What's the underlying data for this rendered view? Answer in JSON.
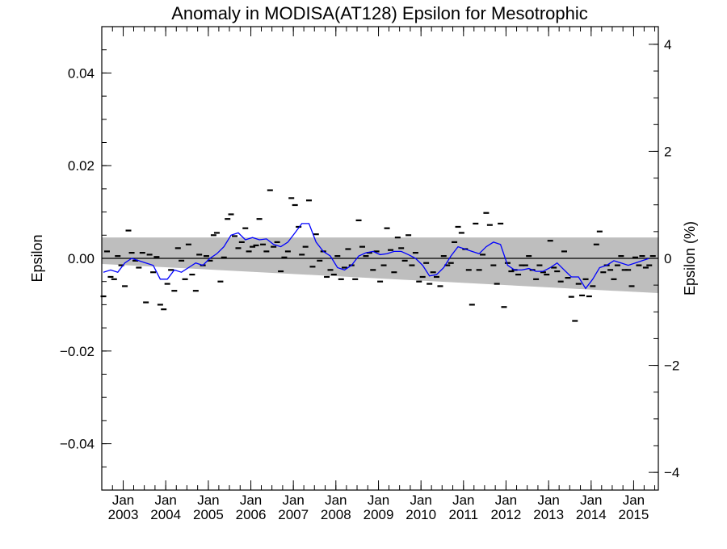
{
  "chart_data": {
    "type": "scatter",
    "title": "Anomaly in MODISA(AT128) Epsilon for Mesotrophic",
    "ylabel": "Epsilon",
    "ylabel_right": "Epsilon (%)",
    "xlabel": "",
    "ylim": [
      -0.05,
      0.05
    ],
    "ylim_right_percent": [
      -4.33,
      4.33
    ],
    "xlim": [
      "2002-07-01",
      "2015-08-01"
    ],
    "y_ticks": [
      "0.04",
      "0.02",
      "0.00",
      "−0.02",
      "−0.04"
    ],
    "y_tick_values": [
      0.04,
      0.02,
      0.0,
      -0.02,
      -0.04
    ],
    "y_right_ticks": [
      "4",
      "2",
      "0",
      "−2",
      "−4"
    ],
    "y_right_tick_values": [
      4,
      2,
      0,
      -2,
      -4
    ],
    "x_tick_labels": [
      {
        "month": "Jan",
        "year": "2003",
        "date": "2003-01-01"
      },
      {
        "month": "Jan",
        "year": "2004",
        "date": "2004-01-01"
      },
      {
        "month": "Jan",
        "year": "2005",
        "date": "2005-01-01"
      },
      {
        "month": "Jan",
        "year": "2006",
        "date": "2006-01-01"
      },
      {
        "month": "Jan",
        "year": "2007",
        "date": "2007-01-01"
      },
      {
        "month": "Jan",
        "year": "2008",
        "date": "2008-01-01"
      },
      {
        "month": "Jan",
        "year": "2009",
        "date": "2009-01-01"
      },
      {
        "month": "Jan",
        "year": "2010",
        "date": "2010-01-01"
      },
      {
        "month": "Jan",
        "year": "2011",
        "date": "2011-01-01"
      },
      {
        "month": "Jan",
        "year": "2012",
        "date": "2012-01-01"
      },
      {
        "month": "Jan",
        "year": "2013",
        "date": "2013-01-01"
      },
      {
        "month": "Jan",
        "year": "2014",
        "date": "2014-01-01"
      },
      {
        "month": "Jan",
        "year": "2015",
        "date": "2015-01-01"
      }
    ],
    "reference_line_y": 0.0,
    "band": {
      "color": "#bebebe",
      "start": {
        "date": "2002-07-01",
        "upper": 0.0045,
        "lower": -0.0012
      },
      "end": {
        "date": "2015-08-01",
        "upper": 0.0045,
        "lower": -0.0075
      }
    },
    "series": [
      {
        "style": "dash-markers",
        "color": "#000000",
        "points": [
          [
            "2002-07-15",
            -0.0082
          ],
          [
            "2002-08-15",
            0.0015
          ],
          [
            "2002-09-15",
            -0.004
          ],
          [
            "2002-10-15",
            -0.0045
          ],
          [
            "2002-11-15",
            0.0005
          ],
          [
            "2002-12-15",
            -0.0015
          ],
          [
            "2003-01-15",
            -0.006
          ],
          [
            "2003-02-15",
            0.006
          ],
          [
            "2003-03-15",
            0.0012
          ],
          [
            "2003-04-15",
            -0.0005
          ],
          [
            "2003-05-15",
            -0.002
          ],
          [
            "2003-06-15",
            0.0012
          ],
          [
            "2003-07-15",
            -0.0095
          ],
          [
            "2003-08-15",
            0.0008
          ],
          [
            "2003-09-15",
            -0.003
          ],
          [
            "2003-10-15",
            0.0003
          ],
          [
            "2003-11-15",
            -0.01
          ],
          [
            "2003-12-15",
            -0.011
          ],
          [
            "2004-01-15",
            -0.0055
          ],
          [
            "2004-02-15",
            -0.0025
          ],
          [
            "2004-03-15",
            -0.007
          ],
          [
            "2004-04-15",
            0.0022
          ],
          [
            "2004-05-15",
            -0.0005
          ],
          [
            "2004-06-15",
            -0.0045
          ],
          [
            "2004-07-15",
            0.003
          ],
          [
            "2004-08-15",
            -0.0035
          ],
          [
            "2004-09-15",
            -0.007
          ],
          [
            "2004-10-15",
            0.0008
          ],
          [
            "2004-11-15",
            -0.0015
          ],
          [
            "2004-12-15",
            0.0005
          ],
          [
            "2005-01-15",
            -0.0005
          ],
          [
            "2005-02-15",
            0.005
          ],
          [
            "2005-03-15",
            0.0055
          ],
          [
            "2005-04-15",
            -0.005
          ],
          [
            "2005-05-15",
            0.0002
          ],
          [
            "2005-06-15",
            0.0085
          ],
          [
            "2005-07-15",
            0.0095
          ],
          [
            "2005-08-15",
            0.0048
          ],
          [
            "2005-09-15",
            0.0022
          ],
          [
            "2005-10-15",
            0.0035
          ],
          [
            "2005-11-15",
            0.0065
          ],
          [
            "2005-12-15",
            0.0015
          ],
          [
            "2006-01-15",
            0.0025
          ],
          [
            "2006-02-15",
            0.0028
          ],
          [
            "2006-03-15",
            0.0085
          ],
          [
            "2006-04-15",
            0.003
          ],
          [
            "2006-05-15",
            0.0015
          ],
          [
            "2006-06-15",
            0.0147
          ],
          [
            "2006-07-15",
            0.0025
          ],
          [
            "2006-08-15",
            0.0035
          ],
          [
            "2006-09-15",
            -0.0028
          ],
          [
            "2006-10-15",
            0.0002
          ],
          [
            "2006-11-15",
            0.0015
          ],
          [
            "2006-12-15",
            0.013
          ],
          [
            "2007-01-15",
            0.0115
          ],
          [
            "2007-02-15",
            0.0068
          ],
          [
            "2007-03-15",
            0.0008
          ],
          [
            "2007-04-15",
            0.0025
          ],
          [
            "2007-05-15",
            0.0125
          ],
          [
            "2007-06-15",
            -0.0018
          ],
          [
            "2007-07-15",
            0.0052
          ],
          [
            "2007-08-15",
            -0.0005
          ],
          [
            "2007-09-15",
            0.0015
          ],
          [
            "2007-10-15",
            -0.004
          ],
          [
            "2007-11-15",
            -0.0025
          ],
          [
            "2007-12-15",
            -0.0035
          ],
          [
            "2008-01-15",
            0.0005
          ],
          [
            "2008-02-15",
            -0.0045
          ],
          [
            "2008-03-15",
            -0.002
          ],
          [
            "2008-04-15",
            0.002
          ],
          [
            "2008-05-15",
            -0.0015
          ],
          [
            "2008-06-15",
            -0.0045
          ],
          [
            "2008-07-15",
            0.0082
          ],
          [
            "2008-08-15",
            0.0025
          ],
          [
            "2008-09-15",
            0.0005
          ],
          [
            "2008-10-15",
            0.0012
          ],
          [
            "2008-11-15",
            -0.0025
          ],
          [
            "2008-12-15",
            0.0015
          ],
          [
            "2009-01-15",
            -0.005
          ],
          [
            "2009-02-15",
            -0.0015
          ],
          [
            "2009-03-15",
            0.0065
          ],
          [
            "2009-04-15",
            0.0018
          ],
          [
            "2009-05-15",
            -0.003
          ],
          [
            "2009-06-15",
            0.0045
          ],
          [
            "2009-07-15",
            0.0022
          ],
          [
            "2009-08-15",
            -0.0005
          ],
          [
            "2009-09-15",
            0.005
          ],
          [
            "2009-10-15",
            -0.0015
          ],
          [
            "2009-11-15",
            0.0012
          ],
          [
            "2009-12-15",
            -0.005
          ],
          [
            "2010-01-15",
            -0.004
          ],
          [
            "2010-02-15",
            -0.001
          ],
          [
            "2010-03-15",
            -0.0055
          ],
          [
            "2010-04-15",
            -0.003
          ],
          [
            "2010-05-15",
            -0.004
          ],
          [
            "2010-06-15",
            -0.006
          ],
          [
            "2010-07-15",
            0.0005
          ],
          [
            "2010-08-15",
            -0.0015
          ],
          [
            "2010-09-15",
            -0.001
          ],
          [
            "2010-10-15",
            0.0035
          ],
          [
            "2010-11-15",
            0.0068
          ],
          [
            "2010-12-15",
            0.0055
          ],
          [
            "2011-01-15",
            0.002
          ],
          [
            "2011-02-15",
            -0.0025
          ],
          [
            "2011-03-15",
            -0.01
          ],
          [
            "2011-04-15",
            0.0075
          ],
          [
            "2011-05-15",
            -0.0025
          ],
          [
            "2011-06-15",
            0.0008
          ],
          [
            "2011-07-15",
            0.0098
          ],
          [
            "2011-08-15",
            0.0072
          ],
          [
            "2011-09-15",
            -0.0015
          ],
          [
            "2011-10-15",
            -0.0055
          ],
          [
            "2011-11-15",
            0.0075
          ],
          [
            "2011-12-15",
            -0.0105
          ],
          [
            "2012-01-15",
            -0.001
          ],
          [
            "2012-02-15",
            -0.0028
          ],
          [
            "2012-03-15",
            -0.0025
          ],
          [
            "2012-04-15",
            -0.0035
          ],
          [
            "2012-05-15",
            -0.0015
          ],
          [
            "2012-06-15",
            -0.0015
          ],
          [
            "2012-07-15",
            0.0005
          ],
          [
            "2012-08-15",
            -0.0025
          ],
          [
            "2012-09-15",
            -0.0045
          ],
          [
            "2012-10-15",
            -0.0015
          ],
          [
            "2012-11-15",
            -0.003
          ],
          [
            "2012-12-15",
            -0.0035
          ],
          [
            "2013-01-15",
            0.0038
          ],
          [
            "2013-02-15",
            -0.002
          ],
          [
            "2013-03-15",
            -0.0028
          ],
          [
            "2013-04-15",
            -0.005
          ],
          [
            "2013-05-15",
            0.0015
          ],
          [
            "2013-06-15",
            -0.0042
          ],
          [
            "2013-07-15",
            -0.0083
          ],
          [
            "2013-08-15",
            -0.0135
          ],
          [
            "2013-09-15",
            -0.0055
          ],
          [
            "2013-10-15",
            -0.008
          ],
          [
            "2013-11-15",
            -0.0045
          ],
          [
            "2013-12-15",
            -0.0082
          ],
          [
            "2014-01-15",
            -0.006
          ],
          [
            "2014-02-15",
            0.003
          ],
          [
            "2014-03-15",
            0.0058
          ],
          [
            "2014-04-15",
            -0.003
          ],
          [
            "2014-05-15",
            -0.0015
          ],
          [
            "2014-06-15",
            -0.0025
          ],
          [
            "2014-07-15",
            -0.0045
          ],
          [
            "2014-08-15",
            -0.0015
          ],
          [
            "2014-09-15",
            0.0005
          ],
          [
            "2014-10-15",
            -0.0025
          ],
          [
            "2014-11-15",
            -0.0025
          ],
          [
            "2014-12-15",
            -0.006
          ],
          [
            "2015-01-15",
            0.0002
          ],
          [
            "2015-02-15",
            -0.0015
          ],
          [
            "2015-03-15",
            0.0005
          ],
          [
            "2015-04-15",
            -0.002
          ],
          [
            "2015-05-15",
            -0.0015
          ],
          [
            "2015-06-15",
            0.0005
          ]
        ]
      },
      {
        "style": "line",
        "color": "#0000ff",
        "points": [
          [
            "2002-07-15",
            -0.003
          ],
          [
            "2002-09-15",
            -0.0025
          ],
          [
            "2002-11-15",
            -0.003
          ],
          [
            "2003-01-15",
            -0.001
          ],
          [
            "2003-03-15",
            0.0
          ],
          [
            "2003-05-15",
            -0.0005
          ],
          [
            "2003-07-15",
            -0.001
          ],
          [
            "2003-09-15",
            -0.0015
          ],
          [
            "2003-11-15",
            -0.0045
          ],
          [
            "2004-01-15",
            -0.0045
          ],
          [
            "2004-03-15",
            -0.0025
          ],
          [
            "2004-05-15",
            -0.003
          ],
          [
            "2004-07-15",
            -0.002
          ],
          [
            "2004-09-15",
            -0.001
          ],
          [
            "2004-11-15",
            -0.0015
          ],
          [
            "2005-01-15",
            0.0
          ],
          [
            "2005-03-15",
            0.001
          ],
          [
            "2005-05-15",
            0.0025
          ],
          [
            "2005-07-15",
            0.005
          ],
          [
            "2005-09-15",
            0.0055
          ],
          [
            "2005-11-15",
            0.004
          ],
          [
            "2006-01-15",
            0.0045
          ],
          [
            "2006-03-15",
            0.004
          ],
          [
            "2006-05-15",
            0.0042
          ],
          [
            "2006-07-15",
            0.003
          ],
          [
            "2006-09-15",
            0.0025
          ],
          [
            "2006-11-15",
            0.0035
          ],
          [
            "2007-01-15",
            0.0055
          ],
          [
            "2007-03-15",
            0.0075
          ],
          [
            "2007-05-15",
            0.0075
          ],
          [
            "2007-07-15",
            0.0035
          ],
          [
            "2007-09-15",
            0.0015
          ],
          [
            "2007-11-15",
            0.0005
          ],
          [
            "2008-01-15",
            -0.002
          ],
          [
            "2008-03-15",
            -0.0025
          ],
          [
            "2008-05-15",
            -0.0015
          ],
          [
            "2008-07-15",
            0.0005
          ],
          [
            "2008-09-15",
            0.0012
          ],
          [
            "2008-11-15",
            0.0015
          ],
          [
            "2009-01-15",
            0.0008
          ],
          [
            "2009-03-15",
            0.001
          ],
          [
            "2009-05-15",
            0.0015
          ],
          [
            "2009-07-15",
            0.0015
          ],
          [
            "2009-09-15",
            0.0008
          ],
          [
            "2009-11-15",
            0.0
          ],
          [
            "2010-01-15",
            -0.0015
          ],
          [
            "2010-03-15",
            -0.0038
          ],
          [
            "2010-05-15",
            -0.0035
          ],
          [
            "2010-07-15",
            -0.002
          ],
          [
            "2010-09-15",
            0.0005
          ],
          [
            "2010-11-15",
            0.0025
          ],
          [
            "2011-01-15",
            0.002
          ],
          [
            "2011-03-15",
            0.0015
          ],
          [
            "2011-05-15",
            0.001
          ],
          [
            "2011-07-15",
            0.0025
          ],
          [
            "2011-09-15",
            0.0035
          ],
          [
            "2011-11-15",
            0.003
          ],
          [
            "2012-01-15",
            -0.0015
          ],
          [
            "2012-03-15",
            -0.0025
          ],
          [
            "2012-05-15",
            -0.0025
          ],
          [
            "2012-07-15",
            -0.0022
          ],
          [
            "2012-09-15",
            -0.0028
          ],
          [
            "2012-11-15",
            -0.0028
          ],
          [
            "2013-01-15",
            -0.002
          ],
          [
            "2013-03-15",
            -0.001
          ],
          [
            "2013-05-15",
            -0.0025
          ],
          [
            "2013-07-15",
            -0.004
          ],
          [
            "2013-09-15",
            -0.004
          ],
          [
            "2013-11-15",
            -0.0065
          ],
          [
            "2014-01-15",
            -0.0045
          ],
          [
            "2014-03-15",
            -0.002
          ],
          [
            "2014-05-15",
            -0.0015
          ],
          [
            "2014-07-15",
            -0.0005
          ],
          [
            "2014-09-15",
            -0.001
          ],
          [
            "2014-11-15",
            -0.0015
          ],
          [
            "2015-01-15",
            -0.001
          ],
          [
            "2015-03-15",
            -0.0005
          ],
          [
            "2015-05-15",
            0.0
          ]
        ]
      }
    ]
  }
}
